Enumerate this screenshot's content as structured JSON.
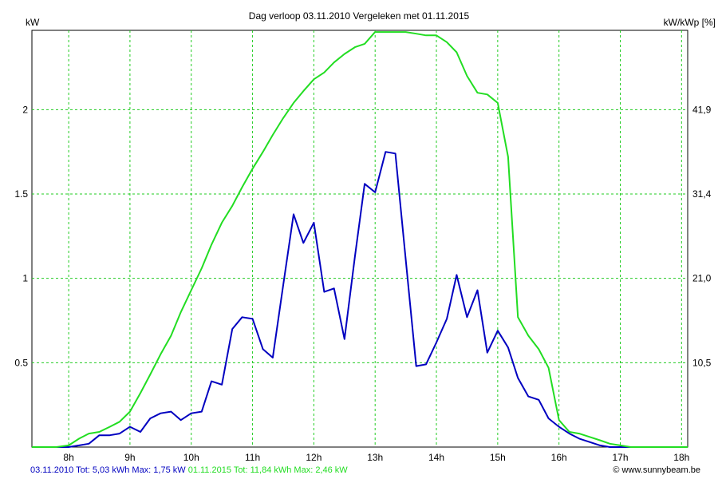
{
  "chart_data": {
    "type": "line",
    "title": "Dag  verloop 03.11.2010   Vergeleken met 01.11.2015",
    "ylabel": "kW",
    "ylabel_right": "kW/kWp [%]",
    "xlim": [
      7.4,
      18.1
    ],
    "ylim": [
      0,
      2.47
    ],
    "x_ticks": [
      8,
      9,
      10,
      11,
      12,
      13,
      14,
      15,
      16,
      17,
      18
    ],
    "x_tick_labels": [
      "8h",
      "9h",
      "10h",
      "11h",
      "12h",
      "13h",
      "14h",
      "15h",
      "16h",
      "17h",
      "18h"
    ],
    "y_ticks": [
      0.5,
      1,
      1.5,
      2
    ],
    "y_tick_labels": [
      "0.5",
      "1",
      "1.5",
      "2"
    ],
    "y2_tick_labels": [
      "10,5",
      "21,0",
      "31,4",
      "41,9"
    ],
    "grid": true,
    "series": [
      {
        "name": "03.11.2010",
        "color": "#0000c0",
        "x": [
          7.4,
          8.0,
          8.17,
          8.33,
          8.5,
          8.67,
          8.83,
          9.0,
          9.17,
          9.33,
          9.5,
          9.67,
          9.83,
          10.0,
          10.17,
          10.33,
          10.5,
          10.67,
          10.83,
          11.0,
          11.17,
          11.33,
          11.5,
          11.67,
          11.83,
          12.0,
          12.17,
          12.33,
          12.5,
          12.67,
          12.83,
          13.0,
          13.17,
          13.33,
          13.5,
          13.67,
          13.83,
          14.0,
          14.17,
          14.33,
          14.5,
          14.67,
          14.83,
          15.0,
          15.17,
          15.33,
          15.5,
          15.67,
          15.83,
          16.0,
          16.17,
          16.33,
          16.5,
          16.67,
          16.83,
          17.0,
          17.17,
          17.5,
          17.75,
          18.1
        ],
        "values": [
          0,
          0,
          0.01,
          0.02,
          0.07,
          0.07,
          0.08,
          0.12,
          0.09,
          0.17,
          0.2,
          0.21,
          0.16,
          0.2,
          0.21,
          0.39,
          0.37,
          0.7,
          0.77,
          0.76,
          0.58,
          0.53,
          0.96,
          1.38,
          1.21,
          1.33,
          0.92,
          0.94,
          0.64,
          1.13,
          1.56,
          1.51,
          1.75,
          1.74,
          1.11,
          0.48,
          0.49,
          0.62,
          0.76,
          1.02,
          0.77,
          0.93,
          0.56,
          0.69,
          0.59,
          0.41,
          0.3,
          0.28,
          0.17,
          0.12,
          0.08,
          0.05,
          0.03,
          0.01,
          0,
          0,
          0,
          0,
          0,
          0
        ]
      },
      {
        "name": "01.11.2015",
        "color": "#22dd22",
        "x": [
          7.4,
          7.8,
          8.0,
          8.17,
          8.33,
          8.5,
          8.67,
          8.83,
          9.0,
          9.17,
          9.33,
          9.5,
          9.67,
          9.83,
          10.0,
          10.17,
          10.33,
          10.5,
          10.67,
          10.83,
          11.0,
          11.17,
          11.33,
          11.5,
          11.67,
          11.83,
          12.0,
          12.17,
          12.33,
          12.5,
          12.67,
          12.83,
          13.0,
          13.17,
          13.33,
          13.5,
          13.67,
          13.83,
          14.0,
          14.17,
          14.33,
          14.5,
          14.67,
          14.83,
          15.0,
          15.17,
          15.33,
          15.5,
          15.67,
          15.83,
          16.0,
          16.17,
          16.33,
          16.5,
          16.67,
          16.83,
          17.0,
          17.17,
          17.5,
          17.75,
          18.1
        ],
        "values": [
          0,
          0,
          0.01,
          0.05,
          0.08,
          0.09,
          0.12,
          0.15,
          0.21,
          0.32,
          0.43,
          0.55,
          0.66,
          0.8,
          0.93,
          1.06,
          1.2,
          1.33,
          1.43,
          1.54,
          1.65,
          1.75,
          1.85,
          1.95,
          2.04,
          2.11,
          2.18,
          2.22,
          2.28,
          2.33,
          2.37,
          2.39,
          2.46,
          2.46,
          2.46,
          2.46,
          2.45,
          2.44,
          2.44,
          2.4,
          2.34,
          2.2,
          2.1,
          2.09,
          2.04,
          1.72,
          0.77,
          0.66,
          0.58,
          0.47,
          0.16,
          0.09,
          0.08,
          0.06,
          0.04,
          0.02,
          0.01,
          0,
          0,
          0,
          0
        ]
      }
    ]
  },
  "footer": {
    "series1_text": "03.11.2010 Tot: 5,03 kWh Max: 1,75 kW",
    "series2_text": "01.11.2015 Tot: 11,84 kWh Max: 2,46 kW",
    "credit": "© www.sunnybeam.be",
    "series1_color": "#0000c0",
    "series2_color": "#22dd22"
  }
}
